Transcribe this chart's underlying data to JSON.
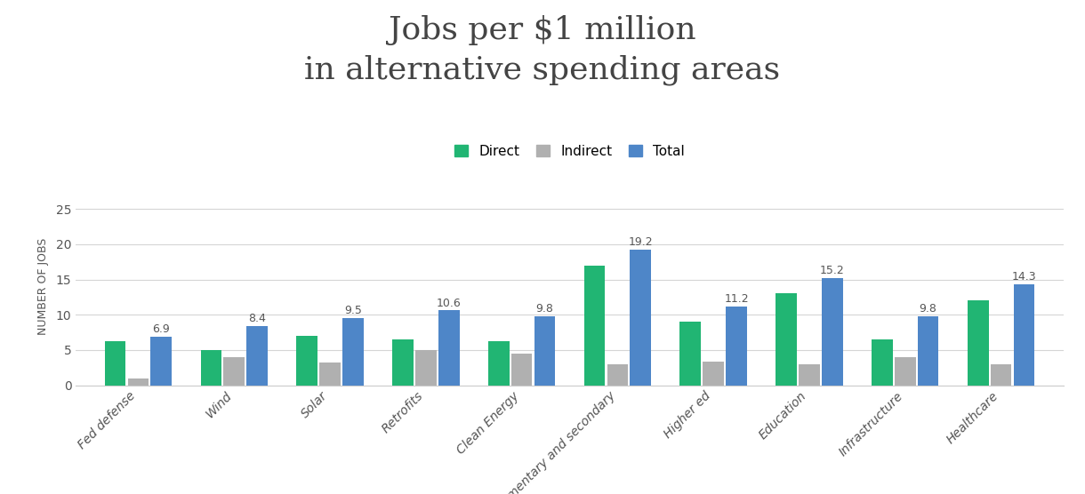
{
  "title": "Jobs per $1 million\nin alternative spending areas",
  "ylabel": "NUMBER OF JOBS",
  "categories": [
    "Fed defense",
    "Wind",
    "Solar",
    "Retrofits",
    "Clean Energy",
    "Elementary and secondary",
    "Higher ed",
    "Education",
    "Infrastructure",
    "Healthcare"
  ],
  "direct": [
    6.3,
    5.0,
    7.0,
    6.5,
    6.2,
    17.0,
    9.0,
    13.0,
    6.5,
    12.0
  ],
  "indirect": [
    1.0,
    4.0,
    3.2,
    5.0,
    4.5,
    3.0,
    3.3,
    3.0,
    4.0,
    3.0
  ],
  "total": [
    6.9,
    8.4,
    9.5,
    10.6,
    9.8,
    19.2,
    11.2,
    15.2,
    9.8,
    14.3
  ],
  "total_labels": [
    "6.9",
    "8.4",
    "9.5",
    "10.6",
    "9.8",
    "19.2",
    "11.2",
    "15.2",
    "9.8",
    "14.3"
  ],
  "color_direct": "#21b573",
  "color_indirect": "#b0b0b0",
  "color_total": "#4e86c8",
  "legend_labels": [
    "Direct",
    "Indirect",
    "Total"
  ],
  "ylim": [
    0,
    28
  ],
  "yticks": [
    0,
    5,
    10,
    15,
    20,
    25
  ],
  "background_color": "#ffffff",
  "title_fontsize": 26,
  "ylabel_fontsize": 9,
  "tick_fontsize": 10,
  "label_fontsize": 9
}
